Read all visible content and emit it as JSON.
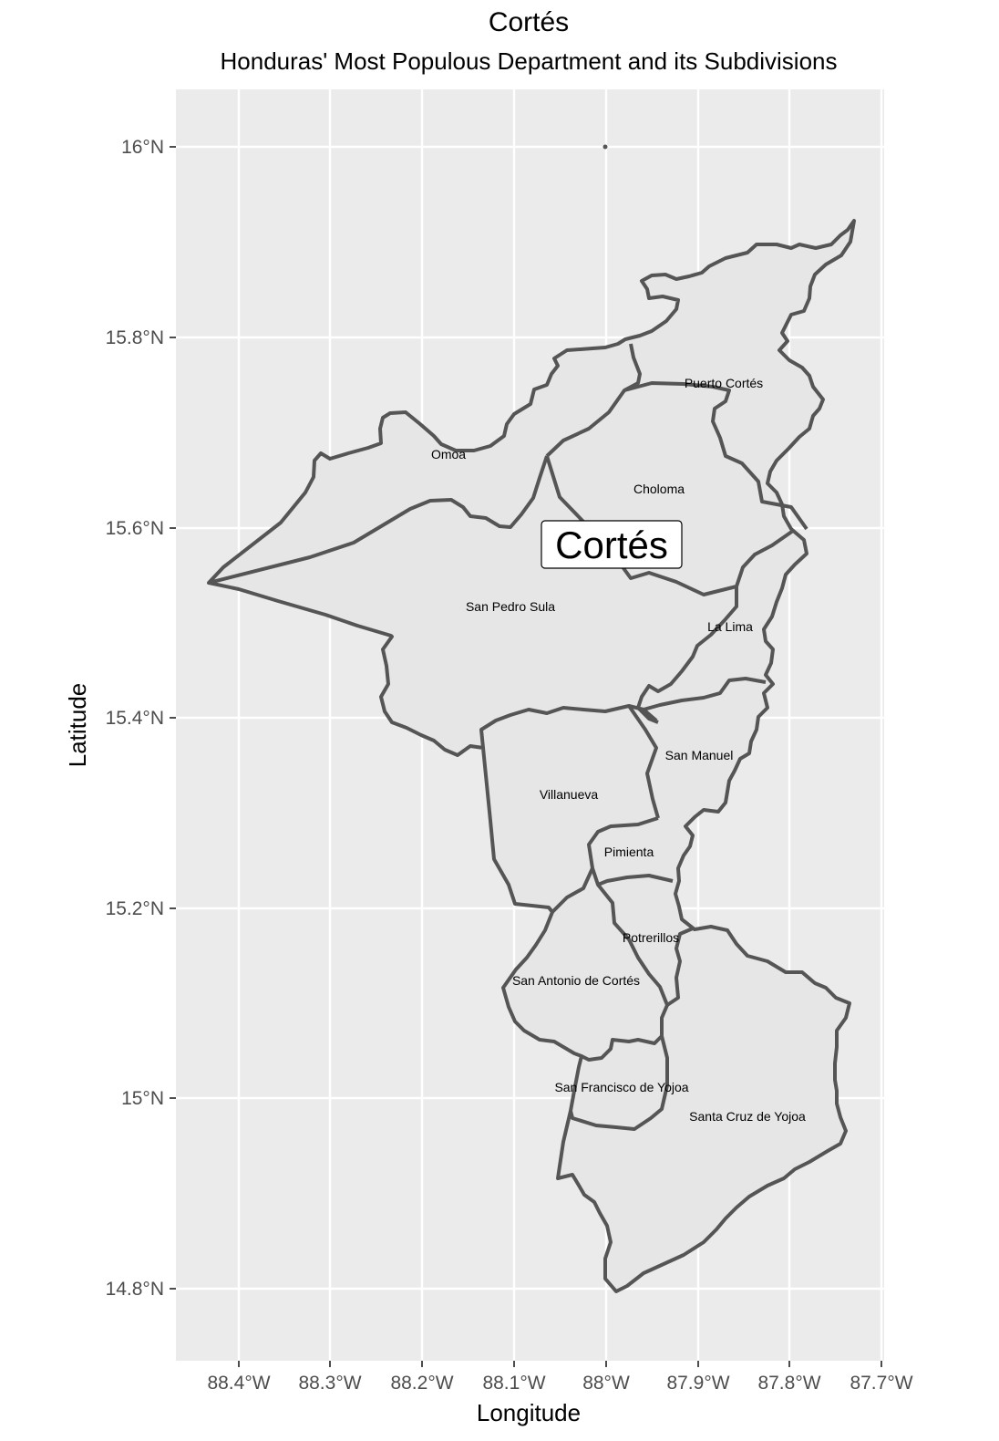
{
  "map": {
    "title": "Cortés",
    "subtitle": "Honduras' Most Populous Department and its Subdivisions",
    "xlabel": "Longitude",
    "ylabel": "Latitude",
    "x_ticks": [
      "88.4°W",
      "88.3°W",
      "88.2°W",
      "88.1°W",
      "88°W",
      "87.9°W",
      "87.8°W",
      "87.7°W"
    ],
    "y_ticks": [
      "16°N",
      "15.8°N",
      "15.6°N",
      "15.4°N",
      "15.2°N",
      "15°N",
      "14.8°N"
    ],
    "department_label": "Cortés",
    "municipalities": [
      "Puerto Cortés",
      "Omoa",
      "Choloma",
      "San Pedro Sula",
      "La Lima",
      "San Manuel",
      "Villanueva",
      "Pimienta",
      "Potrerillos",
      "San Antonio de Cortés",
      "San Francisco de Yojoa",
      "Santa Cruz de Yojoa"
    ],
    "colors": {
      "panel": "#ebebeb",
      "grid": "#ffffff",
      "fill": "#e6e6e6",
      "border": "#555555"
    }
  }
}
